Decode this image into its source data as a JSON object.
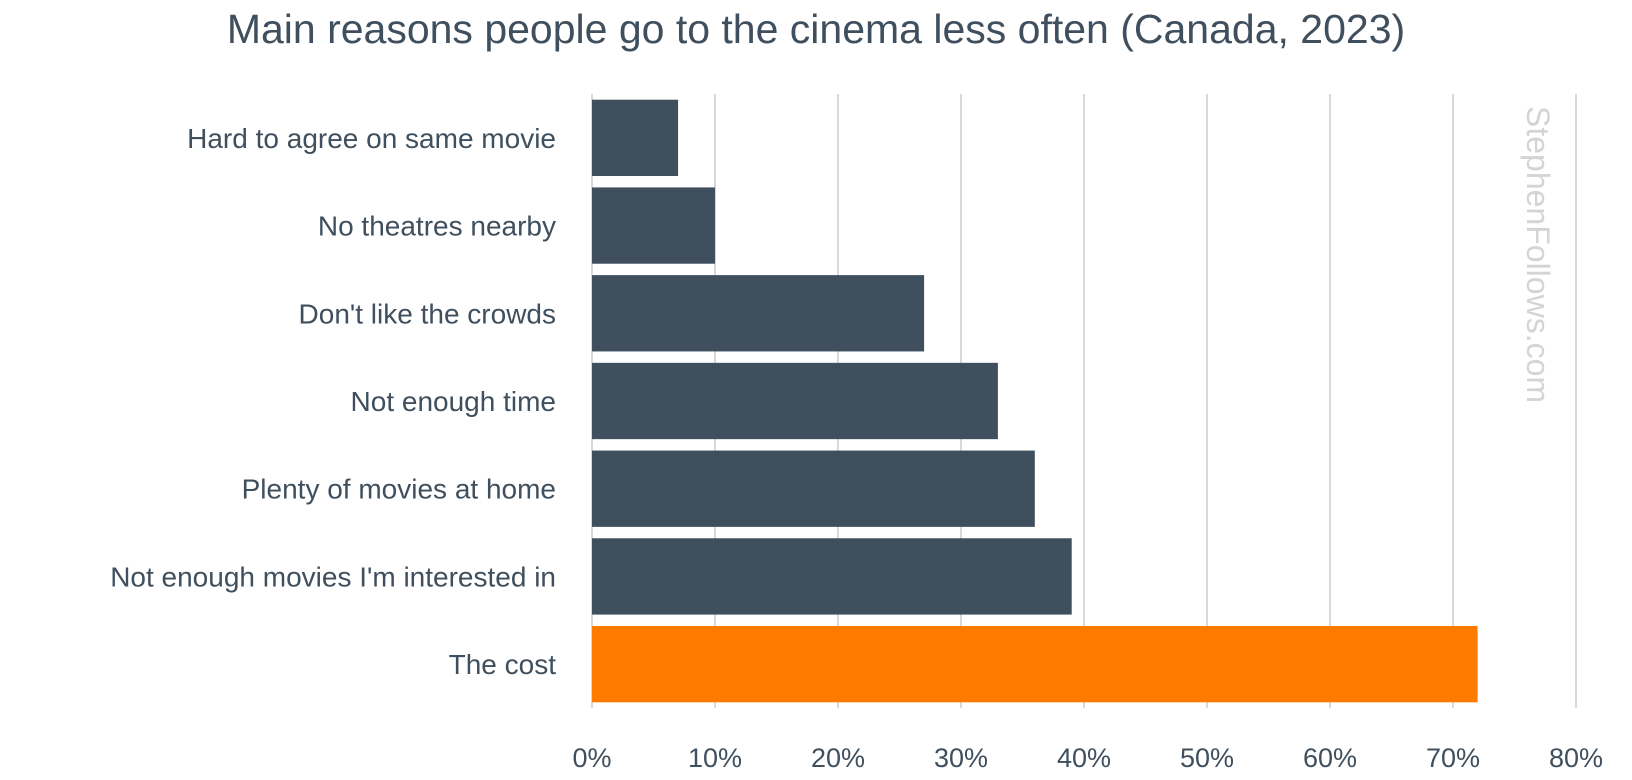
{
  "chart_data": {
    "type": "bar",
    "orientation": "horizontal",
    "title": "Main reasons people go to the cinema less often (Canada, 2023)",
    "xlabel": "",
    "ylabel": "",
    "categories": [
      "Hard to agree on same movie",
      "No theatres nearby",
      "Don't like the crowds",
      "Not enough time",
      "Plenty of movies at home",
      "Not enough movies I'm interested in",
      "The cost"
    ],
    "values": [
      7,
      10,
      27,
      33,
      36,
      39,
      72
    ],
    "value_unit": "%",
    "xlim": [
      0,
      80
    ],
    "xticks": [
      0,
      10,
      20,
      30,
      40,
      50,
      60,
      70,
      80
    ],
    "xtick_labels": [
      "0%",
      "10%",
      "20%",
      "30%",
      "40%",
      "50%",
      "60%",
      "70%",
      "80%"
    ],
    "grid": "vertical",
    "legend": "none",
    "bar_color": "#3f4f5e",
    "highlight_color": "#ff7b00",
    "highlight_index": 6,
    "watermark": "StephenFollows.com"
  }
}
